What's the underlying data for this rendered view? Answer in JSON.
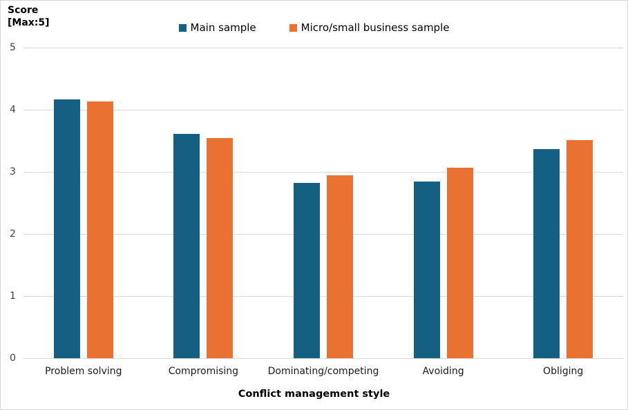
{
  "chart_data": {
    "type": "bar",
    "title": "",
    "y_axis_title": "Score\n[Max:5]",
    "xlabel": "Conflict management style",
    "categories": [
      "Problem solving",
      "Compromising",
      "Dominating/competing",
      "Avoiding",
      "Obliging"
    ],
    "series": [
      {
        "name": "Main sample",
        "color": "#156082",
        "values": [
          4.17,
          3.61,
          2.82,
          2.84,
          3.37
        ]
      },
      {
        "name": "Micro/small business sample",
        "color": "#E97132",
        "values": [
          4.13,
          3.54,
          2.95,
          3.07,
          3.51
        ]
      }
    ],
    "ylim": [
      0,
      5
    ],
    "yticks": [
      0,
      1,
      2,
      3,
      4,
      5
    ],
    "grid": true,
    "legend_position": "top",
    "gridline_color": "#D9D9D9",
    "tick_label_color": "#404040"
  }
}
